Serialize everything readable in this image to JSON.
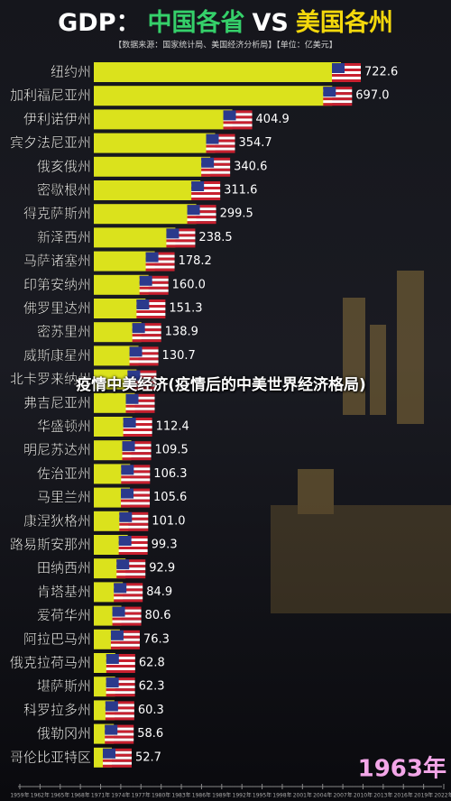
{
  "chart_data": {
    "type": "barh",
    "title_parts": [
      {
        "text": "GDP：",
        "color": "#ffffff"
      },
      {
        "text": "中国各省",
        "color": "#35d06a"
      },
      {
        "text": "VS",
        "color": "#ffffff"
      },
      {
        "text": "美国各州",
        "color": "#f4d80c"
      }
    ],
    "subtitle": "【数据来源：国家统计局、美国经济分析局】【单位：亿美元】",
    "caption": "疫情中美经济(疫情后的中美世界经济格局)",
    "year": "1963年",
    "color": "#dbe21c",
    "xlim": [
      0,
      722.6
    ],
    "categories": [
      "纽约州",
      "加利福尼亚州",
      "伊利诺伊州",
      "宾夕法尼亚州",
      "俄亥俄州",
      "密歇根州",
      "得克萨斯州",
      "新泽西州",
      "马萨诸塞州",
      "印第安纳州",
      "佛罗里达州",
      "密苏里州",
      "威斯康星州",
      "北卡罗来纳州",
      "弗吉尼亚州",
      "华盛顿州",
      "明尼苏达州",
      "佐治亚州",
      "马里兰州",
      "康涅狄格州",
      "路易斯安那州",
      "田纳西州",
      "肯塔基州",
      "爱荷华州",
      "阿拉巴马州",
      "俄克拉荷马州",
      "堪萨斯州",
      "科罗拉多州",
      "俄勒冈州",
      "哥伦比亚特区"
    ],
    "values": [
      722.6,
      697,
      404.9,
      354.7,
      340.6,
      311.6,
      299.5,
      238.5,
      178.2,
      160,
      151.3,
      138.9,
      130.7,
      125,
      120,
      112.4,
      109.5,
      106.3,
      105.6,
      101,
      99.3,
      92.9,
      84.9,
      80.6,
      76.3,
      62.8,
      62.3,
      60.3,
      58.6,
      52.7
    ],
    "value_labels": [
      "722.6",
      "697.0",
      "404.9",
      "354.7",
      "340.6",
      "311.6",
      "299.5",
      "238.5",
      "178.2",
      "160.0",
      "151.3",
      "138.9",
      "130.7",
      null,
      null,
      "112.4",
      "109.5",
      "106.3",
      "105.6",
      "101.0",
      "99.3",
      "92.9",
      "84.9",
      "80.6",
      "76.3",
      "62.8",
      "62.3",
      "60.3",
      "58.6",
      "52.7"
    ],
    "timeline": [
      "1959年",
      "1962年",
      "1965年",
      "1968年",
      "1971年",
      "1974年",
      "1977年",
      "1980年",
      "1983年",
      "1986年",
      "1989年",
      "1992年",
      "1995年",
      "1998年",
      "2001年",
      "2004年",
      "2007年",
      "2010年",
      "2013年",
      "2016年",
      "2019年",
      "2022年"
    ]
  }
}
